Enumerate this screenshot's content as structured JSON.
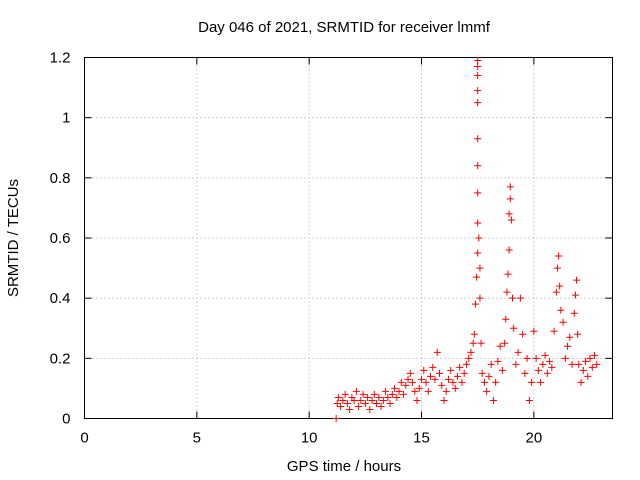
{
  "chart_data": {
    "type": "scatter",
    "title": "Day 046 of 2021, SRMTID for receiver lmmf",
    "xlabel": "GPS time / hours",
    "ylabel": "SRMTID / TECUs",
    "xlim": [
      0,
      23.5
    ],
    "ylim": [
      0,
      1.2
    ],
    "x_ticks": [
      0,
      5,
      10,
      15,
      20
    ],
    "x_tick_labels": [
      "0",
      "5",
      "10",
      "15",
      "20"
    ],
    "y_ticks": [
      0,
      0.2,
      0.4,
      0.6,
      0.8,
      1.0,
      1.2
    ],
    "y_tick_labels": [
      "0",
      "0.2",
      "0.4",
      "0.6",
      "0.8",
      "1",
      "1.2"
    ],
    "grid": true,
    "marker": "plus",
    "color": "#ff0000",
    "series": [
      {
        "name": "SRMTID",
        "points": [
          [
            11.2,
            0.0
          ],
          [
            11.25,
            0.05
          ],
          [
            11.3,
            0.07
          ],
          [
            11.4,
            0.04
          ],
          [
            11.5,
            0.06
          ],
          [
            11.6,
            0.08
          ],
          [
            11.7,
            0.05
          ],
          [
            11.8,
            0.03
          ],
          [
            11.9,
            0.07
          ],
          [
            12.0,
            0.06
          ],
          [
            12.1,
            0.09
          ],
          [
            12.2,
            0.04
          ],
          [
            12.3,
            0.06
          ],
          [
            12.4,
            0.08
          ],
          [
            12.5,
            0.05
          ],
          [
            12.6,
            0.07
          ],
          [
            12.7,
            0.03
          ],
          [
            12.8,
            0.06
          ],
          [
            12.9,
            0.08
          ],
          [
            13.0,
            0.05
          ],
          [
            13.1,
            0.07
          ],
          [
            13.2,
            0.04
          ],
          [
            13.3,
            0.06
          ],
          [
            13.4,
            0.09
          ],
          [
            13.5,
            0.07
          ],
          [
            13.6,
            0.05
          ],
          [
            13.7,
            0.08
          ],
          [
            13.8,
            0.1
          ],
          [
            13.9,
            0.07
          ],
          [
            14.0,
            0.09
          ],
          [
            14.1,
            0.12
          ],
          [
            14.2,
            0.08
          ],
          [
            14.3,
            0.11
          ],
          [
            14.4,
            0.13
          ],
          [
            14.5,
            0.15
          ],
          [
            14.6,
            0.12
          ],
          [
            14.7,
            0.09
          ],
          [
            14.8,
            0.06
          ],
          [
            14.9,
            0.1
          ],
          [
            15.0,
            0.13
          ],
          [
            15.1,
            0.16
          ],
          [
            15.2,
            0.12
          ],
          [
            15.3,
            0.09
          ],
          [
            15.4,
            0.14
          ],
          [
            15.5,
            0.17
          ],
          [
            15.6,
            0.13
          ],
          [
            15.7,
            0.22
          ],
          [
            15.8,
            0.15
          ],
          [
            15.9,
            0.11
          ],
          [
            16.0,
            0.06
          ],
          [
            16.1,
            0.09
          ],
          [
            16.2,
            0.13
          ],
          [
            16.3,
            0.16
          ],
          [
            16.4,
            0.12
          ],
          [
            16.5,
            0.1
          ],
          [
            16.6,
            0.14
          ],
          [
            16.7,
            0.17
          ],
          [
            16.8,
            0.12
          ],
          [
            16.9,
            0.15
          ],
          [
            17.0,
            0.18
          ],
          [
            17.1,
            0.2
          ],
          [
            17.2,
            0.22
          ],
          [
            17.3,
            0.25
          ],
          [
            17.35,
            0.28
          ],
          [
            17.4,
            0.38
          ],
          [
            17.45,
            0.47
          ],
          [
            17.5,
            0.55
          ],
          [
            17.5,
            0.65
          ],
          [
            17.5,
            0.75
          ],
          [
            17.5,
            0.84
          ],
          [
            17.5,
            0.93
          ],
          [
            17.5,
            1.05
          ],
          [
            17.5,
            1.09
          ],
          [
            17.5,
            1.14
          ],
          [
            17.5,
            1.17
          ],
          [
            17.5,
            1.19
          ],
          [
            17.55,
            0.6
          ],
          [
            17.6,
            0.5
          ],
          [
            17.6,
            0.4
          ],
          [
            17.65,
            0.25
          ],
          [
            17.7,
            0.15
          ],
          [
            17.8,
            0.12
          ],
          [
            17.9,
            0.09
          ],
          [
            18.0,
            0.14
          ],
          [
            18.1,
            0.18
          ],
          [
            18.2,
            0.06
          ],
          [
            18.3,
            0.12
          ],
          [
            18.4,
            0.19
          ],
          [
            18.5,
            0.24
          ],
          [
            18.6,
            0.16
          ],
          [
            18.7,
            0.25
          ],
          [
            18.75,
            0.33
          ],
          [
            18.8,
            0.42
          ],
          [
            18.85,
            0.48
          ],
          [
            18.9,
            0.56
          ],
          [
            18.9,
            0.68
          ],
          [
            18.95,
            0.73
          ],
          [
            18.95,
            0.77
          ],
          [
            19.0,
            0.66
          ],
          [
            19.05,
            0.4
          ],
          [
            19.1,
            0.3
          ],
          [
            19.2,
            0.18
          ],
          [
            19.3,
            0.22
          ],
          [
            19.4,
            0.4
          ],
          [
            19.5,
            0.28
          ],
          [
            19.6,
            0.15
          ],
          [
            19.7,
            0.2
          ],
          [
            19.8,
            0.06
          ],
          [
            19.9,
            0.12
          ],
          [
            20.0,
            0.29
          ],
          [
            20.1,
            0.2
          ],
          [
            20.2,
            0.16
          ],
          [
            20.3,
            0.12
          ],
          [
            20.4,
            0.18
          ],
          [
            20.5,
            0.21
          ],
          [
            20.6,
            0.15
          ],
          [
            20.7,
            0.19
          ],
          [
            20.8,
            0.17
          ],
          [
            20.9,
            0.29
          ],
          [
            21.0,
            0.42
          ],
          [
            21.05,
            0.5
          ],
          [
            21.1,
            0.54
          ],
          [
            21.15,
            0.44
          ],
          [
            21.2,
            0.36
          ],
          [
            21.3,
            0.32
          ],
          [
            21.4,
            0.2
          ],
          [
            21.5,
            0.24
          ],
          [
            21.6,
            0.27
          ],
          [
            21.7,
            0.18
          ],
          [
            21.8,
            0.35
          ],
          [
            21.85,
            0.41
          ],
          [
            21.9,
            0.46
          ],
          [
            21.95,
            0.28
          ],
          [
            22.0,
            0.18
          ],
          [
            22.1,
            0.12
          ],
          [
            22.2,
            0.16
          ],
          [
            22.3,
            0.19
          ],
          [
            22.4,
            0.14
          ],
          [
            22.5,
            0.2
          ],
          [
            22.6,
            0.17
          ],
          [
            22.7,
            0.21
          ],
          [
            22.8,
            0.18
          ]
        ]
      }
    ]
  }
}
